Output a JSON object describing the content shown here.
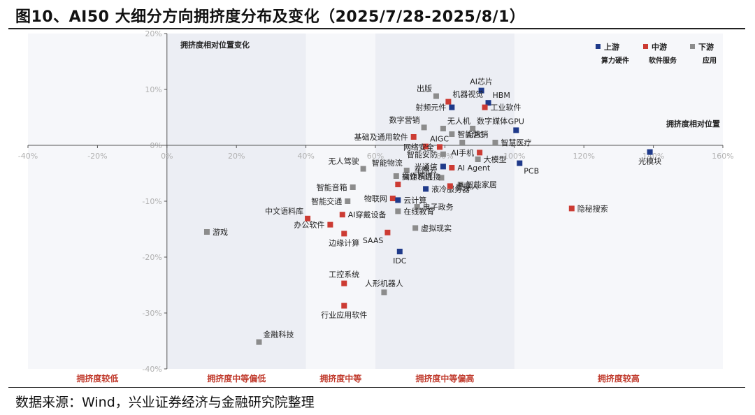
{
  "title": "图10、AI50 大细分方向拥挤度分布及变化（2025/7/28-2025/8/1）",
  "source": "数据来源：Wind，兴业证券经济与金融研究院整理",
  "colors": {
    "upstream": "#1f3a8a",
    "midstream": "#cc3b33",
    "downstream": "#8c8c8c",
    "zone_band": "#eceef4",
    "zone_label": "#c0392b",
    "tick": "#b0b0b0"
  },
  "chart_data": {
    "type": "scatter",
    "xlabel": "拥挤度相对位置",
    "ylabel": "拥挤度相对位置变化",
    "xlim": [
      -0.4,
      1.6
    ],
    "ylim": [
      -0.4,
      0.2
    ],
    "x_ticks": [
      -0.4,
      -0.2,
      0,
      0.2,
      0.4,
      0.6,
      0.8,
      1.0,
      1.2,
      1.4,
      1.6
    ],
    "y_ticks": [
      -0.4,
      -0.3,
      -0.2,
      -0.1,
      0,
      0.1,
      0.2
    ],
    "x_tick_labels": [
      "-40%",
      "-20%",
      "0%",
      "20%",
      "40%",
      "60%",
      "80%",
      "100%",
      "120%",
      "140%",
      "160%"
    ],
    "y_tick_labels": [
      "-40%",
      "-30%",
      "-20%",
      "-10%",
      "0%",
      "10%",
      "20%"
    ],
    "grid": false,
    "legend_position": "top-right",
    "legend": [
      {
        "key": "upstream",
        "name": "上游",
        "sub": "算力硬件"
      },
      {
        "key": "midstream",
        "name": "中游",
        "sub": "软件服务"
      },
      {
        "key": "downstream",
        "name": "下游",
        "sub": "应用"
      }
    ],
    "bands": [
      {
        "from": 0.0,
        "to": 0.4
      },
      {
        "from": 0.6,
        "to": 1.0
      }
    ],
    "zones": [
      {
        "label": "拥挤度较低",
        "x": -0.2
      },
      {
        "label": "拥挤度中等偏低",
        "x": 0.2
      },
      {
        "label": "拥挤度中等",
        "x": 0.5
      },
      {
        "label": "拥挤度中等偏高",
        "x": 0.8
      },
      {
        "label": "拥挤度较高",
        "x": 1.3
      }
    ],
    "points": [
      {
        "label": "AI芯片",
        "x": 0.905,
        "y": 0.098,
        "group": "upstream",
        "pos": "top"
      },
      {
        "label": "HBM",
        "x": 0.925,
        "y": 0.076,
        "group": "upstream",
        "pos": "topright"
      },
      {
        "label": "出版",
        "x": 0.775,
        "y": 0.088,
        "group": "downstream",
        "pos": "topleft"
      },
      {
        "label": "机器视觉",
        "x": 0.81,
        "y": 0.078,
        "group": "midstream",
        "pos": "topright"
      },
      {
        "label": "射频元件",
        "x": 0.82,
        "y": 0.068,
        "group": "upstream",
        "pos": "left"
      },
      {
        "label": "工业软件",
        "x": 0.915,
        "y": 0.068,
        "group": "midstream",
        "pos": "right"
      },
      {
        "label": "GPU",
        "x": 1.005,
        "y": 0.027,
        "group": "upstream",
        "pos": "top"
      },
      {
        "label": "数字营销",
        "x": 0.74,
        "y": 0.032,
        "group": "downstream",
        "pos": "topleft"
      },
      {
        "label": "无人机",
        "x": 0.795,
        "y": 0.03,
        "group": "downstream",
        "pos": "topright"
      },
      {
        "label": "数字媒体",
        "x": 0.88,
        "y": 0.03,
        "group": "downstream",
        "pos": "topright"
      },
      {
        "label": "智慧医疗",
        "x": 0.945,
        "y": 0.005,
        "group": "downstream",
        "pos": "right"
      },
      {
        "label": "基础及通用软件",
        "x": 0.71,
        "y": 0.015,
        "group": "midstream",
        "pos": "left"
      },
      {
        "label": "智能营销",
        "x": 0.82,
        "y": 0.02,
        "group": "downstream",
        "pos": "right"
      },
      {
        "label": "AIGC",
        "x": 0.745,
        "y": -0.002,
        "group": "midstream",
        "pos": "topright"
      },
      {
        "label": "AIPC",
        "x": 0.85,
        "y": 0.005,
        "group": "downstream",
        "pos": "topright"
      },
      {
        "label": "网络安全",
        "x": 0.785,
        "y": -0.003,
        "group": "midstream",
        "pos": "left"
      },
      {
        "label": "AI手机",
        "x": 0.9,
        "y": -0.013,
        "group": "midstream",
        "pos": "left"
      },
      {
        "label": "光模块",
        "x": 1.39,
        "y": -0.012,
        "group": "upstream",
        "pos": "bottom"
      },
      {
        "label": "智能安防",
        "x": 0.795,
        "y": -0.016,
        "group": "downstream",
        "pos": "left"
      },
      {
        "label": "大模型",
        "x": 0.895,
        "y": -0.025,
        "group": "downstream",
        "pos": "right"
      },
      {
        "label": "PCB",
        "x": 1.015,
        "y": -0.032,
        "group": "upstream",
        "pos": "bottomright"
      },
      {
        "label": "光通信",
        "x": 0.795,
        "y": -0.038,
        "group": "upstream",
        "pos": "left"
      },
      {
        "label": "AI Agent",
        "x": 0.82,
        "y": -0.04,
        "group": "midstream",
        "pos": "right"
      },
      {
        "label": "无人驾驶",
        "x": 0.565,
        "y": -0.042,
        "group": "downstream",
        "pos": "topleft"
      },
      {
        "label": "智能物流",
        "x": 0.69,
        "y": -0.045,
        "group": "downstream",
        "pos": "topleft"
      },
      {
        "label": "操作系统",
        "x": 0.66,
        "y": -0.055,
        "group": "downstream",
        "pos": "right"
      },
      {
        "label": "车路云",
        "x": 0.79,
        "y": -0.058,
        "group": "downstream",
        "pos": "topleft"
      },
      {
        "label": "智能家居",
        "x": 0.845,
        "y": -0.07,
        "group": "downstream",
        "pos": "right"
      },
      {
        "label": "智能音箱",
        "x": 0.535,
        "y": -0.075,
        "group": "downstream",
        "pos": "left"
      },
      {
        "label": "高速铜连接",
        "x": 0.665,
        "y": -0.07,
        "group": "midstream",
        "pos": "topright"
      },
      {
        "label": "液冷服务器",
        "x": 0.745,
        "y": -0.078,
        "group": "upstream",
        "pos": "right"
      },
      {
        "label": "虚拟人",
        "x": 0.815,
        "y": -0.073,
        "group": "midstream",
        "pos": "right"
      },
      {
        "label": "智能交通",
        "x": 0.52,
        "y": -0.1,
        "group": "downstream",
        "pos": "left"
      },
      {
        "label": "物联网",
        "x": 0.65,
        "y": -0.095,
        "group": "midstream",
        "pos": "left"
      },
      {
        "label": "云计算",
        "x": 0.665,
        "y": -0.098,
        "group": "upstream",
        "pos": "right"
      },
      {
        "label": "电子政务",
        "x": 0.72,
        "y": -0.11,
        "group": "downstream",
        "pos": "right"
      },
      {
        "label": "中文语料库",
        "x": 0.405,
        "y": -0.131,
        "group": "midstream",
        "pos": "topleft"
      },
      {
        "label": "AI穿戴设备",
        "x": 0.505,
        "y": -0.124,
        "group": "midstream",
        "pos": "right"
      },
      {
        "label": "在线教育",
        "x": 0.665,
        "y": -0.118,
        "group": "downstream",
        "pos": "right"
      },
      {
        "label": "办公软件",
        "x": 0.47,
        "y": -0.142,
        "group": "midstream",
        "pos": "left"
      },
      {
        "label": "游戏",
        "x": 0.115,
        "y": -0.155,
        "group": "downstream",
        "pos": "right"
      },
      {
        "label": "虚拟现实",
        "x": 0.715,
        "y": -0.148,
        "group": "downstream",
        "pos": "right"
      },
      {
        "label": "边缘计算",
        "x": 0.51,
        "y": -0.158,
        "group": "midstream",
        "pos": "bottom"
      },
      {
        "label": "SAAS",
        "x": 0.635,
        "y": -0.156,
        "group": "midstream",
        "pos": "bottomleft"
      },
      {
        "label": "IDC",
        "x": 0.67,
        "y": -0.19,
        "group": "upstream",
        "pos": "bottom"
      },
      {
        "label": "工控系统",
        "x": 0.51,
        "y": -0.247,
        "group": "midstream",
        "pos": "top"
      },
      {
        "label": "人形机器人",
        "x": 0.625,
        "y": -0.263,
        "group": "downstream",
        "pos": "top"
      },
      {
        "label": "行业应用软件",
        "x": 0.51,
        "y": -0.287,
        "group": "midstream",
        "pos": "bottom"
      },
      {
        "label": "金融科技",
        "x": 0.265,
        "y": -0.352,
        "group": "downstream",
        "pos": "topright"
      },
      {
        "label": "隐秘搜索",
        "x": 1.165,
        "y": -0.113,
        "group": "midstream",
        "pos": "right"
      }
    ]
  }
}
